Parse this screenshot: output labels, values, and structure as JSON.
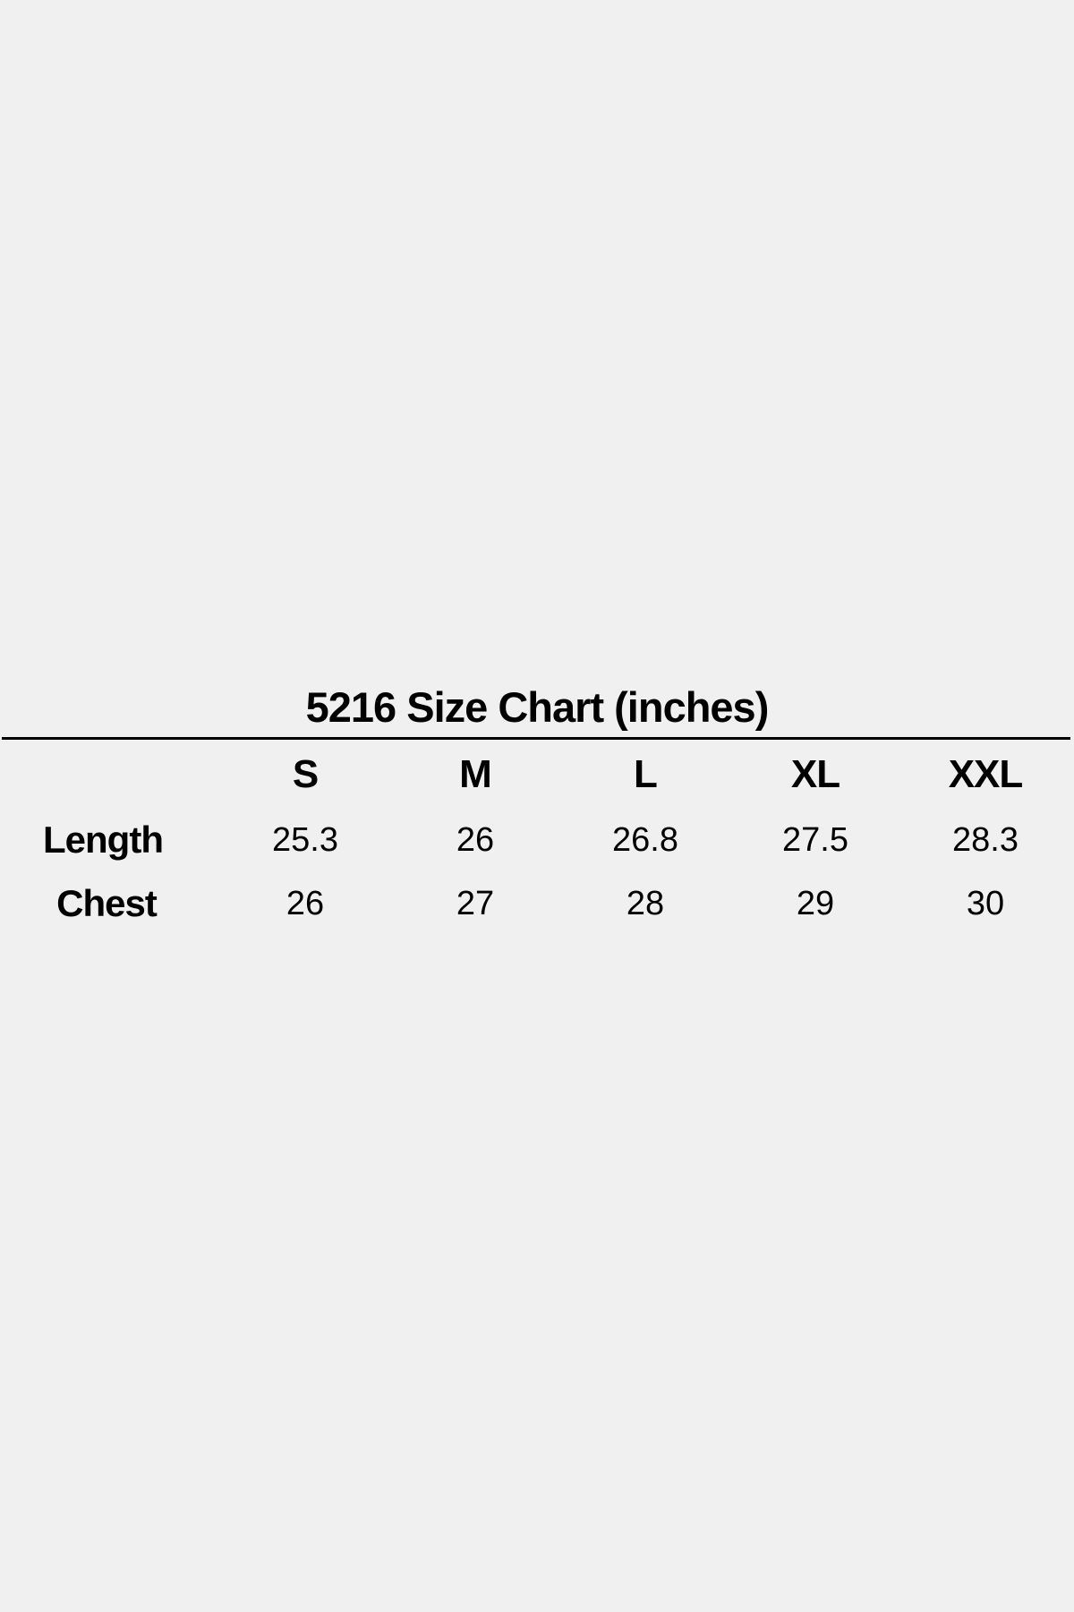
{
  "title": "5216 Size Chart (inches)",
  "sizes": [
    "S",
    "M",
    "L",
    "XL",
    "XXL"
  ],
  "rows": [
    {
      "label": "Length",
      "values": [
        "25.3",
        "26",
        "26.8",
        "27.5",
        "28.3"
      ]
    },
    {
      "label": "Chest",
      "values": [
        "26",
        "27",
        "28",
        "29",
        "30"
      ]
    }
  ]
}
